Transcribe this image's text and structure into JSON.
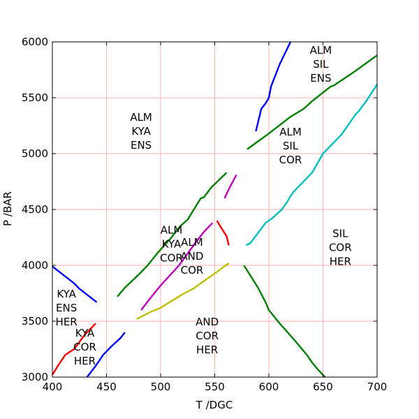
{
  "chart_data": {
    "type": "line",
    "title": "",
    "xlabel": "T /DGC",
    "ylabel": "P /BAR",
    "xlim": [
      400,
      700
    ],
    "ylim": [
      3000,
      6000
    ],
    "xticks": [
      400,
      450,
      500,
      550,
      600,
      650,
      700
    ],
    "yticks": [
      3000,
      3500,
      4000,
      4500,
      5000,
      5500,
      6000
    ],
    "grid": true,
    "grid_color": "#ffb3b3",
    "legend": "none",
    "series": [
      {
        "color": "#0000ff",
        "points": [
          [
            400,
            3990
          ],
          [
            420,
            3840
          ],
          [
            425,
            3790
          ],
          [
            441,
            3670
          ]
        ]
      },
      {
        "color": "#0000ff",
        "points": [
          [
            432,
            3000
          ],
          [
            440,
            3100
          ],
          [
            447,
            3200
          ],
          [
            455,
            3280
          ],
          [
            463,
            3350
          ],
          [
            467,
            3400
          ]
        ]
      },
      {
        "color": "#0000ff",
        "points": [
          [
            588,
            5200
          ],
          [
            593,
            5400
          ],
          [
            597,
            5450
          ],
          [
            600,
            5500
          ],
          [
            602,
            5600
          ],
          [
            610,
            5800
          ],
          [
            620,
            6000
          ]
        ]
      },
      {
        "color": "#ff0000",
        "points": [
          [
            400,
            3020
          ],
          [
            405,
            3100
          ],
          [
            412,
            3200
          ],
          [
            420,
            3250
          ],
          [
            430,
            3380
          ],
          [
            440,
            3480
          ]
        ]
      },
      {
        "color": "#ff0000",
        "points": [
          [
            552,
            4400
          ],
          [
            557,
            4320
          ],
          [
            561,
            4260
          ],
          [
            563,
            4180
          ]
        ]
      },
      {
        "color": "#008000",
        "points": [
          [
            460,
            3720
          ],
          [
            467,
            3800
          ],
          [
            480,
            3920
          ],
          [
            488,
            4000
          ],
          [
            498,
            4120
          ],
          [
            510,
            4250
          ],
          [
            518,
            4350
          ],
          [
            525,
            4410
          ],
          [
            537,
            4600
          ],
          [
            540,
            4610
          ],
          [
            547,
            4700
          ],
          [
            561,
            4830
          ]
        ]
      },
      {
        "color": "#008000",
        "points": [
          [
            580,
            5040
          ],
          [
            600,
            5180
          ],
          [
            620,
            5330
          ],
          [
            632,
            5400
          ],
          [
            640,
            5470
          ],
          [
            657,
            5600
          ],
          [
            660,
            5610
          ],
          [
            677,
            5720
          ],
          [
            690,
            5810
          ],
          [
            700,
            5880
          ]
        ]
      },
      {
        "color": "#008000",
        "points": [
          [
            577,
            4000
          ],
          [
            590,
            3800
          ],
          [
            597,
            3670
          ],
          [
            600,
            3600
          ],
          [
            610,
            3480
          ],
          [
            622,
            3350
          ],
          [
            635,
            3200
          ],
          [
            640,
            3130
          ],
          [
            645,
            3070
          ],
          [
            652,
            3000
          ]
        ]
      },
      {
        "color": "#00bfbf",
        "points": [
          [
            579,
            4180
          ],
          [
            583,
            4200
          ],
          [
            590,
            4290
          ],
          [
            597,
            4380
          ],
          [
            603,
            4420
          ],
          [
            612,
            4500
          ],
          [
            617,
            4570
          ],
          [
            620,
            4620
          ],
          [
            623,
            4660
          ],
          [
            633,
            4760
          ],
          [
            640,
            4830
          ],
          [
            650,
            5000
          ],
          [
            660,
            5100
          ],
          [
            667,
            5170
          ],
          [
            675,
            5280
          ],
          [
            680,
            5350
          ],
          [
            683,
            5380
          ],
          [
            690,
            5470
          ],
          [
            700,
            5620
          ]
        ]
      },
      {
        "color": "#bf00bf",
        "points": [
          [
            482,
            3600
          ],
          [
            490,
            3700
          ],
          [
            500,
            3820
          ],
          [
            517,
            4000
          ],
          [
            532,
            4200
          ],
          [
            540,
            4300
          ],
          [
            548,
            4380
          ]
        ]
      },
      {
        "color": "#bf00bf",
        "points": [
          [
            559,
            4600
          ],
          [
            562,
            4660
          ],
          [
            565,
            4720
          ],
          [
            570,
            4810
          ]
        ]
      },
      {
        "color": "#bfbf00",
        "points": [
          [
            478,
            3520
          ],
          [
            490,
            3580
          ],
          [
            500,
            3620
          ],
          [
            510,
            3680
          ],
          [
            520,
            3740
          ],
          [
            530,
            3790
          ],
          [
            540,
            3860
          ],
          [
            549,
            3920
          ],
          [
            556,
            3970
          ],
          [
            563,
            4020
          ]
        ]
      }
    ],
    "annotations": [
      {
        "lines": [
          "ALM",
          "KYA",
          "ENS"
        ],
        "x": 482,
        "y": 5200
      },
      {
        "lines": [
          "ALM",
          "SIL",
          "ENS"
        ],
        "x": 648,
        "y": 5800
      },
      {
        "lines": [
          "ALM",
          "SIL",
          "COR"
        ],
        "x": 620,
        "y": 5070
      },
      {
        "lines": [
          "ALM",
          "KYA",
          "COR"
        ],
        "x": 510,
        "y": 4190
      },
      {
        "lines": [
          "ALM",
          "AND",
          "COR"
        ],
        "x": 529,
        "y": 4080
      },
      {
        "lines": [
          "SIL",
          "COR",
          "HER"
        ],
        "x": 666,
        "y": 4160
      },
      {
        "lines": [
          "KYA",
          "ENS",
          "HER"
        ],
        "x": 413,
        "y": 3620
      },
      {
        "lines": [
          "KYA",
          "COR",
          "HER"
        ],
        "x": 430,
        "y": 3270
      },
      {
        "lines": [
          "AND",
          "COR",
          "HER"
        ],
        "x": 543,
        "y": 3370
      }
    ]
  }
}
